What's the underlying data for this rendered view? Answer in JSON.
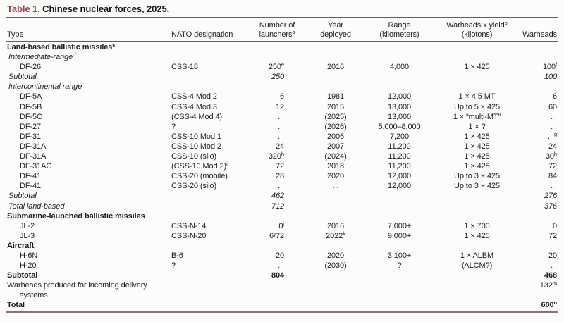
{
  "title": {
    "label": "Table 1.",
    "text": " Chinese nuclear forces, 2025."
  },
  "colors": {
    "accent": "#A53E40",
    "rule_top": "#9A464C",
    "rule_bottom": "#8E6E76",
    "text": "#1C1C1C"
  },
  "header": {
    "type": "Type",
    "nato": "NATO designation",
    "launchers": "Number of\nlaunchers^a",
    "year": "Year\ndeployed",
    "range": "Range\n(kilometers)",
    "yield": "Warheads x yield^b\n(kilotons)",
    "warheads": "Warheads"
  },
  "rows": [
    {
      "style": "section",
      "cells": [
        "Land-based ballistic missiles^c",
        "",
        "",
        "",
        "",
        "",
        ""
      ]
    },
    {
      "style": "subsection",
      "cells": [
        "Intermediate-range^d",
        "",
        "",
        "",
        "",
        "",
        ""
      ]
    },
    {
      "style": "item",
      "cells": [
        "DF-26",
        "CSS-18",
        "250^e",
        "2016",
        "4,000",
        "1 × 425",
        "100^f"
      ]
    },
    {
      "style": "subtotal",
      "cells": [
        "Subtotal:",
        "",
        "250",
        "",
        "",
        "",
        "100"
      ]
    },
    {
      "style": "subsection",
      "cells": [
        "Intercontinental range",
        "",
        "",
        "",
        "",
        "",
        ""
      ]
    },
    {
      "style": "item",
      "cells": [
        "DF-5A",
        "CSS-4 Mod 2",
        "6",
        "1981",
        "12,000",
        "1 × 4.5 MT",
        "6"
      ]
    },
    {
      "style": "item",
      "cells": [
        "DF-5B",
        "CSS-4 Mod 3",
        "12",
        "2015",
        "13,000",
        "Up to 5 × 425",
        "60"
      ]
    },
    {
      "style": "item",
      "cells": [
        "DF-5C",
        "(CSS-4 Mod 4)",
        ". .",
        "(2025)",
        "13,000",
        "1 × “multi-MT”",
        ". ."
      ]
    },
    {
      "style": "item",
      "cells": [
        "DF-27",
        "?",
        ". .",
        "(2026)",
        "5,000–8,000",
        "1 × ?",
        ". ."
      ]
    },
    {
      "style": "item",
      "cells": [
        "DF-31",
        "CSS-10 Mod 1",
        ". .",
        "2006",
        "7,200",
        "1 × 425",
        ". .^g"
      ]
    },
    {
      "style": "item",
      "cells": [
        "DF-31A",
        "CSS-10 Mod 2",
        "24",
        "2007",
        "11,200",
        "1 × 425",
        "24"
      ]
    },
    {
      "style": "item",
      "cells": [
        "DF-31A",
        "CSS-10 (silo)",
        "320^h",
        "(2024)",
        "11,200",
        "1 × 425",
        "30^h"
      ]
    },
    {
      "style": "item",
      "cells": [
        "DF-31AG",
        "(CSS-10 Mod 2)^i",
        "72",
        "2018",
        "11,200",
        "1 × 425",
        "72"
      ]
    },
    {
      "style": "item",
      "cells": [
        "DF-41",
        "CSS-20 (mobile)",
        "28",
        "2020",
        "12,000",
        "Up to 3 × 425",
        "84"
      ]
    },
    {
      "style": "item",
      "cells": [
        "DF-41",
        "CSS-20 (silo)",
        ". .",
        ". .",
        "12,000",
        "Up to 3 × 425",
        ". ."
      ]
    },
    {
      "style": "subtotal",
      "cells": [
        "Subtotal:",
        "",
        "462",
        "",
        "",
        "",
        "276"
      ]
    },
    {
      "style": "subtotal",
      "cells": [
        "Total land-based",
        "",
        "712",
        "",
        "",
        "",
        "376"
      ]
    },
    {
      "style": "section",
      "cells": [
        "Submarine-launched ballistic missiles",
        "",
        "",
        "",
        "",
        "",
        ""
      ]
    },
    {
      "style": "item",
      "cells": [
        "JL-2",
        "CSS-N-14",
        "0^j",
        "2016",
        "7,000+",
        "1 × 700",
        "0"
      ]
    },
    {
      "style": "item",
      "cells": [
        "JL-3",
        "CSS-N-20",
        "6/72",
        "2022^k",
        "9,000+",
        "1 × 425",
        "72"
      ]
    },
    {
      "style": "section",
      "cells": [
        "Aircraft^l",
        "",
        "",
        "",
        "",
        "",
        ""
      ]
    },
    {
      "style": "item",
      "cells": [
        "H-6N",
        "B-6",
        "20",
        "2020",
        "3,100+",
        "1 × ALBM",
        "20"
      ]
    },
    {
      "style": "item",
      "cells": [
        "H-20",
        "?",
        ". .",
        "(2030)",
        "?",
        "(ALCM?)",
        ". ."
      ]
    },
    {
      "style": "total-bold",
      "cells": [
        "Subtotal",
        "",
        "804",
        "",
        "",
        "",
        "468"
      ]
    },
    {
      "style": "note",
      "cells": [
        "Warheads produced for incoming delivery\nsystems",
        "",
        "",
        "",
        "",
        "",
        "132^m"
      ]
    },
    {
      "style": "total-bold",
      "cells": [
        "Total",
        "",
        "",
        "",
        "",
        "",
        "600^n"
      ]
    }
  ]
}
